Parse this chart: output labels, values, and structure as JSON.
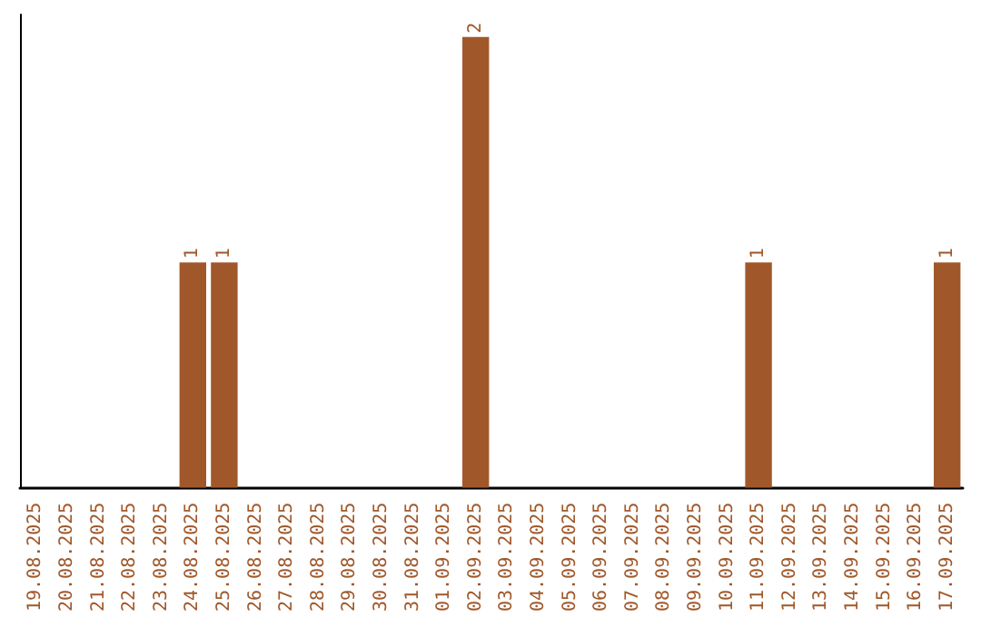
{
  "chart_data": {
    "type": "bar",
    "categories": [
      "19.08.2025",
      "20.08.2025",
      "21.08.2025",
      "22.08.2025",
      "23.08.2025",
      "24.08.2025",
      "25.08.2025",
      "26.08.2025",
      "27.08.2025",
      "28.08.2025",
      "29.08.2025",
      "30.08.2025",
      "31.08.2025",
      "01.09.2025",
      "02.09.2025",
      "03.09.2025",
      "04.09.2025",
      "05.09.2025",
      "06.09.2025",
      "07.09.2025",
      "08.09.2025",
      "09.09.2025",
      "10.09.2025",
      "11.09.2025",
      "12.09.2025",
      "13.09.2025",
      "14.09.2025",
      "15.09.2025",
      "16.09.2025",
      "17.09.2025"
    ],
    "values": [
      0,
      0,
      0,
      0,
      0,
      1,
      1,
      0,
      0,
      0,
      0,
      0,
      0,
      0,
      2,
      0,
      0,
      0,
      0,
      0,
      0,
      0,
      0,
      1,
      0,
      0,
      0,
      0,
      0,
      1
    ],
    "value_labels": [
      null,
      null,
      null,
      null,
      null,
      "1",
      "1",
      null,
      null,
      null,
      null,
      null,
      null,
      null,
      "2",
      null,
      null,
      null,
      null,
      null,
      null,
      null,
      null,
      "1",
      null,
      null,
      null,
      null,
      null,
      "1"
    ],
    "color": "#a0582a",
    "grid": false,
    "tick_labels": "x"
  }
}
